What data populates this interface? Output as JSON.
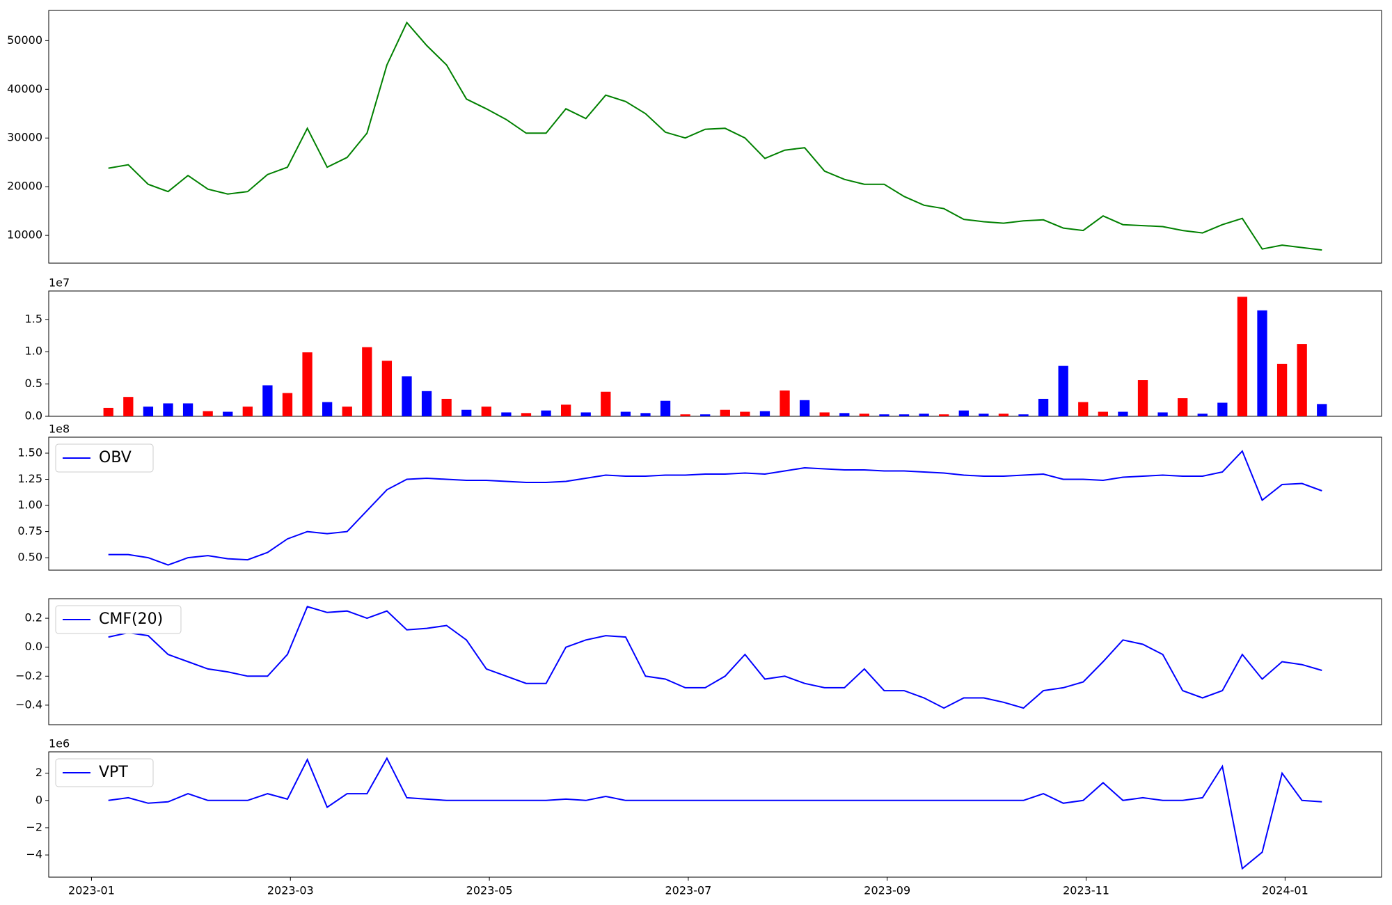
{
  "chart_data": [
    {
      "type": "line",
      "color": "green",
      "x": [
        0.17,
        0.37,
        0.57,
        0.77,
        0.97,
        1.17,
        1.37,
        1.57,
        1.77,
        1.97,
        2.17,
        2.37,
        2.57,
        2.77,
        2.97,
        3.17,
        3.37,
        3.57,
        3.77,
        3.97,
        4.17,
        4.37,
        4.57,
        4.77,
        4.97,
        5.17,
        5.37,
        5.57,
        5.77,
        5.97,
        6.17,
        6.37,
        6.57,
        6.77,
        6.97,
        7.17,
        7.37,
        7.57,
        7.77,
        7.97,
        8.17,
        8.37,
        8.57,
        8.77,
        8.97,
        9.17,
        9.37,
        9.57,
        9.77,
        9.97,
        10.17,
        10.37,
        10.57,
        10.77,
        10.97,
        11.17,
        11.37,
        11.57,
        11.77,
        11.97,
        12.17,
        12.37
      ],
      "values": [
        23800,
        24500,
        20500,
        19000,
        22300,
        19500,
        18500,
        19000,
        22500,
        24000,
        32000,
        24000,
        26000,
        31000,
        45000,
        53700,
        49000,
        45000,
        38000,
        36000,
        33800,
        31000,
        31000,
        36000,
        34000,
        38800,
        37500,
        35000,
        31200,
        30000,
        31800,
        32000,
        30000,
        25800,
        27500,
        28000,
        23200,
        21500,
        20500,
        20500,
        18000,
        16200,
        15500,
        13300,
        12800,
        12500,
        13000,
        13200,
        11500,
        11000,
        14000,
        12200,
        12000,
        11800,
        11000,
        10500,
        12200,
        13500,
        7200,
        8000,
        7500,
        7000
      ],
      "xlim": [
        -0.43,
        12.97
      ],
      "ylim": [
        4300,
        56200
      ],
      "yticks": [
        10000,
        20000,
        30000,
        40000,
        50000
      ]
    },
    {
      "type": "bar",
      "x": [
        0.17,
        0.37,
        0.57,
        0.77,
        0.97,
        1.17,
        1.37,
        1.57,
        1.77,
        1.97,
        2.17,
        2.37,
        2.57,
        2.77,
        2.97,
        3.17,
        3.37,
        3.57,
        3.77,
        3.97,
        4.17,
        4.37,
        4.57,
        4.77,
        4.97,
        5.17,
        5.37,
        5.57,
        5.77,
        5.97,
        6.17,
        6.37,
        6.57,
        6.77,
        6.97,
        7.17,
        7.37,
        7.57,
        7.77,
        7.97,
        8.17,
        8.37,
        8.57,
        8.77,
        8.97,
        9.17,
        9.37,
        9.57,
        9.77,
        9.97,
        10.17,
        10.37,
        10.57,
        10.77,
        10.97,
        11.17,
        11.37,
        11.57,
        11.77,
        11.97,
        12.17,
        12.37
      ],
      "values": [
        1300000,
        3000000,
        1500000,
        2000000,
        2000000,
        800000,
        700000,
        1500000,
        4800000,
        3600000,
        9900000,
        2200000,
        1500000,
        10700000,
        8600000,
        6200000,
        3900000,
        2700000,
        1000000,
        1500000,
        600000,
        500000,
        900000,
        1800000,
        600000,
        3800000,
        700000,
        500000,
        2400000,
        300000,
        300000,
        1000000,
        700000,
        800000,
        4000000,
        2500000,
        600000,
        500000,
        400000,
        300000,
        300000,
        400000,
        300000,
        900000,
        400000,
        400000,
        300000,
        2700000,
        7800000,
        2200000,
        700000,
        700000,
        5600000,
        600000,
        2800000,
        400000,
        2100000,
        18500000,
        16400000,
        8100000,
        11200000,
        1900000
      ],
      "colors": [
        "red",
        "red",
        "blue",
        "blue",
        "blue",
        "red",
        "blue",
        "red",
        "blue",
        "red",
        "red",
        "blue",
        "red",
        "red",
        "red",
        "blue",
        "blue",
        "red",
        "blue",
        "red",
        "blue",
        "red",
        "blue",
        "red",
        "blue",
        "red",
        "blue",
        "blue",
        "blue",
        "red",
        "blue",
        "red",
        "red",
        "blue",
        "red",
        "blue",
        "red",
        "blue",
        "red",
        "blue",
        "blue",
        "blue",
        "red",
        "blue",
        "blue",
        "red",
        "blue",
        "blue",
        "blue",
        "red",
        "red",
        "blue",
        "red",
        "blue",
        "red",
        "blue",
        "blue",
        "red",
        "blue",
        "red",
        "red",
        "blue"
      ],
      "xlim": [
        -0.43,
        12.97
      ],
      "ylim": [
        0,
        19400000
      ],
      "y_offset_label": "1e7",
      "yticks": [
        {
          "value": 0,
          "label": "0.0"
        },
        {
          "value": 5000000,
          "label": "0.5"
        },
        {
          "value": 10000000,
          "label": "1.0"
        },
        {
          "value": 15000000,
          "label": "1.5"
        }
      ]
    },
    {
      "type": "line",
      "legend": "upper left",
      "x": [
        0.17,
        0.37,
        0.57,
        0.77,
        0.97,
        1.17,
        1.37,
        1.57,
        1.77,
        1.97,
        2.17,
        2.37,
        2.57,
        2.77,
        2.97,
        3.17,
        3.37,
        3.57,
        3.77,
        3.97,
        4.17,
        4.37,
        4.57,
        4.77,
        4.97,
        5.17,
        5.37,
        5.57,
        5.77,
        5.97,
        6.17,
        6.37,
        6.57,
        6.77,
        6.97,
        7.17,
        7.37,
        7.57,
        7.77,
        7.97,
        8.17,
        8.37,
        8.57,
        8.77,
        8.97,
        9.17,
        9.37,
        9.57,
        9.77,
        9.97,
        10.17,
        10.37,
        10.57,
        10.77,
        10.97,
        11.17,
        11.37,
        11.57,
        11.77,
        11.97,
        12.17,
        12.37
      ],
      "series": [
        {
          "name": "OBV",
          "color": "blue",
          "values": [
            53000000,
            53000000,
            50000000,
            43000000,
            50000000,
            52000000,
            49000000,
            48000000,
            55000000,
            68000000,
            75000000,
            73000000,
            75000000,
            95000000,
            115000000,
            125000000,
            126000000,
            125000000,
            124000000,
            124000000,
            123000000,
            122000000,
            122000000,
            123000000,
            126000000,
            129000000,
            128000000,
            128000000,
            129000000,
            129000000,
            130000000,
            130000000,
            131000000,
            130000000,
            133000000,
            136000000,
            135000000,
            134000000,
            134000000,
            133000000,
            133000000,
            132000000,
            131000000,
            129000000,
            128000000,
            128000000,
            129000000,
            130000000,
            125000000,
            125000000,
            124000000,
            127000000,
            128000000,
            129000000,
            128000000,
            128000000,
            132000000,
            152000000,
            105000000,
            120000000,
            121000000,
            114000000
          ]
        }
      ],
      "xlim": [
        -0.43,
        12.97
      ],
      "ylim": [
        38100000,
        165300000
      ],
      "y_offset_label": "1e8",
      "yticks": [
        {
          "value": 50000000,
          "label": "0.50"
        },
        {
          "value": 75000000,
          "label": "0.75"
        },
        {
          "value": 100000000,
          "label": "1.00"
        },
        {
          "value": 125000000,
          "label": "1.25"
        },
        {
          "value": 150000000,
          "label": "1.50"
        }
      ]
    },
    {
      "type": "line",
      "legend": "upper left",
      "x": [
        0.17,
        0.37,
        0.57,
        0.77,
        0.97,
        1.17,
        1.37,
        1.57,
        1.77,
        1.97,
        2.17,
        2.37,
        2.57,
        2.77,
        2.97,
        3.17,
        3.37,
        3.57,
        3.77,
        3.97,
        4.17,
        4.37,
        4.57,
        4.77,
        4.97,
        5.17,
        5.37,
        5.57,
        5.77,
        5.97,
        6.17,
        6.37,
        6.57,
        6.77,
        6.97,
        7.17,
        7.37,
        7.57,
        7.77,
        7.97,
        8.17,
        8.37,
        8.57,
        8.77,
        8.97,
        9.17,
        9.37,
        9.57,
        9.77,
        9.97,
        10.17,
        10.37,
        10.57,
        10.77,
        10.97,
        11.17,
        11.37,
        11.57,
        11.77,
        11.97,
        12.17,
        12.37
      ],
      "series": [
        {
          "name": "CMF(20)",
          "color": "blue",
          "values": [
            0.07,
            0.1,
            0.08,
            -0.05,
            -0.1,
            -0.15,
            -0.17,
            -0.2,
            -0.2,
            -0.05,
            0.28,
            0.24,
            0.25,
            0.2,
            0.25,
            0.12,
            0.13,
            0.15,
            0.05,
            -0.15,
            -0.2,
            -0.25,
            -0.25,
            0.0,
            0.05,
            0.08,
            0.07,
            -0.2,
            -0.22,
            -0.28,
            -0.28,
            -0.2,
            -0.05,
            -0.22,
            -0.2,
            -0.25,
            -0.28,
            -0.28,
            -0.15,
            -0.3,
            -0.3,
            -0.35,
            -0.42,
            -0.35,
            -0.35,
            -0.38,
            -0.42,
            -0.3,
            -0.28,
            -0.24,
            -0.1,
            0.05,
            0.02,
            -0.05,
            -0.3,
            -0.35,
            -0.3,
            -0.05,
            -0.22,
            -0.1,
            -0.12,
            -0.16
          ]
        }
      ],
      "xlim": [
        -0.43,
        12.97
      ],
      "ylim": [
        -0.535,
        0.335
      ],
      "yticks": [
        {
          "value": -0.4,
          "label": "−0.4"
        },
        {
          "value": -0.2,
          "label": "−0.2"
        },
        {
          "value": 0,
          "label": "0.0"
        },
        0.2
      ]
    },
    {
      "type": "line",
      "legend": "upper left",
      "x": [
        0.17,
        0.37,
        0.57,
        0.77,
        0.97,
        1.17,
        1.37,
        1.57,
        1.77,
        1.97,
        2.17,
        2.37,
        2.57,
        2.77,
        2.97,
        3.17,
        3.37,
        3.57,
        3.77,
        3.97,
        4.17,
        4.37,
        4.57,
        4.77,
        4.97,
        5.17,
        5.37,
        5.57,
        5.77,
        5.97,
        6.17,
        6.37,
        6.57,
        6.77,
        6.97,
        7.17,
        7.37,
        7.57,
        7.77,
        7.97,
        8.17,
        8.37,
        8.57,
        8.77,
        8.97,
        9.17,
        9.37,
        9.57,
        9.77,
        9.97,
        10.17,
        10.37,
        10.57,
        10.77,
        10.97,
        11.17,
        11.37,
        11.57,
        11.77,
        11.97,
        12.17,
        12.37
      ],
      "series": [
        {
          "name": "VPT",
          "color": "blue",
          "values": [
            0,
            200000,
            -200000,
            -100000,
            500000,
            0,
            0,
            0,
            500000,
            100000,
            3000000,
            -500000,
            500000,
            500000,
            3100000,
            200000,
            100000,
            0,
            0,
            0,
            0,
            0,
            0,
            100000,
            0,
            300000,
            0,
            0,
            0,
            0,
            0,
            0,
            0,
            0,
            0,
            0,
            0,
            0,
            0,
            0,
            0,
            0,
            0,
            0,
            0,
            0,
            0,
            500000,
            -200000,
            0,
            1300000,
            0,
            200000,
            0,
            0,
            200000,
            2500000,
            -5000000,
            -3800000,
            2000000,
            0,
            -100000
          ]
        }
      ],
      "xlim": [
        -0.43,
        12.97
      ],
      "ylim": [
        -5630000,
        3570000
      ],
      "y_offset_label": "1e6",
      "yticks": [
        {
          "value": -4000000,
          "label": "−4"
        },
        {
          "value": -2000000,
          "label": "−2"
        },
        {
          "value": 0,
          "label": "0"
        },
        {
          "value": 2000000,
          "label": "2"
        }
      ],
      "xticks": [
        {
          "value": 0,
          "label": "2023-01"
        },
        {
          "value": 2,
          "label": "2023-03"
        },
        {
          "value": 4,
          "label": "2023-05"
        },
        {
          "value": 6,
          "label": "2023-07"
        },
        {
          "value": 8,
          "label": "2023-09"
        },
        {
          "value": 10,
          "label": "2023-11"
        },
        {
          "value": 12,
          "label": "2024-01"
        }
      ]
    }
  ]
}
